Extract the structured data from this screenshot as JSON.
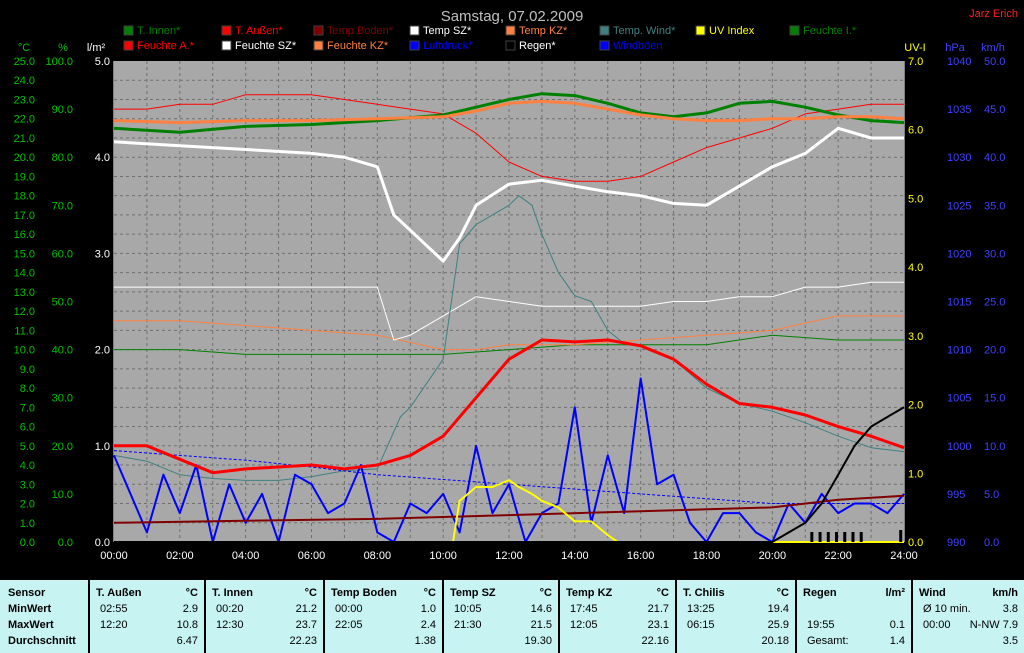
{
  "title": "Samstag, 07.02.2009",
  "author": "Jarz Erich",
  "chart_data": {
    "type": "line",
    "x_ticks": [
      "00:00",
      "02:00",
      "04:00",
      "06:00",
      "08:00",
      "10:00",
      "12:00",
      "14:00",
      "16:00",
      "18:00",
      "20:00",
      "22:00",
      "24:00"
    ],
    "axes": {
      "celsius": {
        "label": "°C",
        "min": 0,
        "max": 25,
        "step": 1,
        "color": "#00c000"
      },
      "percent": {
        "label": "%",
        "min": 0,
        "max": 100,
        "step": 10,
        "color": "#00c000"
      },
      "rain": {
        "label": "l/m²",
        "min": 0,
        "max": 5,
        "step": 1,
        "color": "#ffffff"
      },
      "uv": {
        "label": "UV-I",
        "min": 0,
        "max": 7,
        "step": 1,
        "color": "#ffff00"
      },
      "pressure": {
        "label": "hPa",
        "min": 990,
        "max": 1040,
        "step": 5,
        "color": "#4040ff"
      },
      "wind": {
        "label": "km/h",
        "min": 0,
        "max": 50,
        "step": 5,
        "color": "#4040ff"
      }
    },
    "legend": [
      {
        "name": "T. Innen*",
        "color": "#008000"
      },
      {
        "name": "T. Außen*",
        "color": "#ff0000"
      },
      {
        "name": "Temp Boden*",
        "color": "#800000"
      },
      {
        "name": "Temp SZ*",
        "color": "#ffffff"
      },
      {
        "name": "Temp KZ*",
        "color": "#ff8040"
      },
      {
        "name": "Temp. Wind*",
        "color": "#408080"
      },
      {
        "name": "UV Index",
        "color": "#ffff00"
      },
      {
        "name": "Feuchte I.*",
        "color": "#008000"
      },
      {
        "name": "Feuchte A.*",
        "color": "#ff0000"
      },
      {
        "name": "Feuchte SZ*",
        "color": "#ffffff"
      },
      {
        "name": "Feuchte KZ*",
        "color": "#ff8040"
      },
      {
        "name": "Luftdruck*",
        "color": "#0000ff"
      },
      {
        "name": "Regen*",
        "color": "#000000"
      },
      {
        "name": "Windböen",
        "color": "#0000ff"
      }
    ],
    "series": [
      {
        "name": "T. Innen*",
        "axis": "celsius",
        "color": "#008000",
        "width": 3,
        "x": [
          0,
          2,
          4,
          6,
          8,
          10,
          11,
          12,
          13,
          14,
          15,
          16,
          17,
          18,
          19,
          20,
          21,
          22,
          23,
          24
        ],
        "y": [
          21.5,
          21.3,
          21.6,
          21.7,
          21.9,
          22.2,
          22.6,
          23.0,
          23.3,
          23.2,
          22.8,
          22.3,
          22.1,
          22.3,
          22.8,
          22.9,
          22.6,
          22.2,
          21.9,
          21.8
        ]
      },
      {
        "name": "T. Außen*",
        "axis": "celsius",
        "color": "#ff0000",
        "width": 3,
        "x": [
          0,
          1,
          2,
          3,
          4,
          5,
          6,
          7,
          8,
          9,
          10,
          11,
          12,
          13,
          14,
          15,
          16,
          17,
          18,
          19,
          20,
          21,
          22,
          23,
          24
        ],
        "y": [
          5.0,
          5.0,
          4.3,
          3.6,
          3.8,
          3.9,
          4.0,
          3.8,
          4.0,
          4.5,
          5.5,
          7.5,
          9.5,
          10.5,
          10.4,
          10.5,
          10.2,
          9.5,
          8.2,
          7.2,
          7.0,
          6.6,
          6.0,
          5.5,
          4.9
        ]
      },
      {
        "name": "Temp Boden*",
        "axis": "celsius",
        "color": "#800000",
        "width": 2,
        "x": [
          0,
          4,
          8,
          12,
          16,
          20,
          22,
          24
        ],
        "y": [
          1.0,
          1.1,
          1.2,
          1.4,
          1.6,
          1.8,
          2.2,
          2.4
        ]
      },
      {
        "name": "Temp SZ*",
        "axis": "celsius",
        "color": "#ffffff",
        "width": 3,
        "x": [
          0,
          2,
          4,
          6,
          7,
          8,
          8.5,
          9,
          10,
          10.5,
          11,
          12,
          13,
          14,
          15,
          16,
          17,
          18,
          19,
          20,
          21,
          22,
          23,
          24
        ],
        "y": [
          20.8,
          20.6,
          20.4,
          20.2,
          20.0,
          19.5,
          17.0,
          16.2,
          14.6,
          15.8,
          17.5,
          18.6,
          18.8,
          18.5,
          18.2,
          18.0,
          17.6,
          17.5,
          18.5,
          19.5,
          20.2,
          21.5,
          21.0,
          21.0
        ]
      },
      {
        "name": "Temp KZ*",
        "axis": "celsius",
        "color": "#ff8040",
        "width": 3,
        "x": [
          0,
          2,
          4,
          6,
          8,
          10,
          11,
          12,
          13,
          14,
          15,
          16,
          17,
          18,
          19,
          20,
          21,
          22,
          23,
          24
        ],
        "y": [
          21.9,
          21.8,
          21.9,
          21.9,
          22.0,
          22.1,
          22.4,
          22.8,
          22.9,
          22.8,
          22.5,
          22.2,
          22.0,
          21.9,
          21.9,
          22.0,
          22.0,
          22.1,
          22.1,
          22.0
        ]
      },
      {
        "name": "Temp. Wind*",
        "axis": "celsius",
        "color": "#408080",
        "width": 1,
        "x": [
          0,
          1,
          2,
          3,
          4,
          5,
          6,
          7,
          8,
          8.7,
          9,
          10,
          10.5,
          11,
          11.5,
          12,
          12.3,
          12.7,
          13,
          13.5,
          14,
          14.5,
          15,
          15.5,
          16,
          17,
          18,
          19,
          20,
          21,
          22,
          23,
          24
        ],
        "y": [
          4.5,
          4.2,
          3.5,
          3.3,
          3.2,
          3.2,
          3.4,
          3.7,
          3.8,
          6.5,
          7.0,
          9.5,
          15.5,
          16.5,
          17.0,
          17.5,
          18.0,
          17.5,
          16.0,
          14.0,
          12.8,
          12.5,
          11.0,
          10.3,
          10.2,
          9.5,
          8.0,
          7.2,
          6.8,
          6.2,
          5.5,
          4.9,
          4.7
        ]
      },
      {
        "name": "Feuchte I.*",
        "axis": "percent",
        "color": "#008000",
        "width": 1,
        "x": [
          0,
          2,
          4,
          6,
          8,
          10,
          12,
          14,
          16,
          18,
          20,
          22,
          24
        ],
        "y": [
          40,
          40,
          39,
          39,
          39,
          39,
          40,
          41,
          41,
          41,
          43,
          42,
          42
        ]
      },
      {
        "name": "Feuchte A.*",
        "axis": "percent",
        "color": "#ff0000",
        "width": 1,
        "x": [
          0,
          1,
          2,
          3,
          4,
          5,
          6,
          7,
          8,
          9,
          10,
          11,
          12,
          13,
          14,
          15,
          16,
          17,
          18,
          19,
          20,
          21,
          22,
          23,
          24
        ],
        "y": [
          90,
          90,
          91,
          91,
          93,
          93,
          93,
          92,
          91,
          90,
          89,
          85,
          79,
          76,
          75,
          75,
          76,
          79,
          82,
          84,
          86,
          89,
          90,
          91,
          91
        ]
      },
      {
        "name": "Feuchte SZ*",
        "axis": "percent",
        "color": "#ffffff",
        "width": 1,
        "x": [
          0,
          2,
          4,
          6,
          8,
          8.5,
          9,
          10,
          11,
          12,
          13,
          14,
          15,
          16,
          17,
          18,
          19,
          20,
          21,
          22,
          23,
          24
        ],
        "y": [
          53,
          53,
          53,
          53,
          53,
          42,
          43,
          47,
          51,
          50,
          49,
          49,
          49,
          49,
          50,
          50,
          51,
          51,
          53,
          53,
          54,
          54
        ]
      },
      {
        "name": "Feuchte KZ*",
        "axis": "percent",
        "color": "#ff8040",
        "width": 1,
        "x": [
          0,
          2,
          4,
          6,
          8,
          10,
          11,
          12,
          14,
          16,
          18,
          20,
          22,
          24
        ],
        "y": [
          46,
          46,
          45,
          44,
          43,
          40,
          40,
          41,
          41,
          42,
          43,
          44,
          47,
          47
        ]
      },
      {
        "name": "Luftdruck*",
        "axis": "pressure",
        "color": "#0000ff",
        "width": 1,
        "dashed": true,
        "x": [
          0,
          2,
          4,
          6,
          8,
          10,
          12,
          14,
          16,
          18,
          20,
          22,
          24
        ],
        "y": [
          999.5,
          999,
          998.5,
          997.8,
          997,
          996.5,
          996,
          995.5,
          995,
          994.5,
          994,
          994,
          994
        ]
      },
      {
        "name": "Windböen",
        "axis": "wind",
        "color": "#0000ff",
        "width": 2,
        "x": [
          0,
          0.5,
          1,
          1.5,
          2,
          2.5,
          3,
          3.5,
          4,
          4.5,
          5,
          5.5,
          6,
          6.5,
          7,
          7.5,
          8,
          8.5,
          9,
          9.5,
          10,
          10.5,
          11,
          11.5,
          12,
          12.5,
          13,
          13.5,
          14,
          14.5,
          15,
          15.5,
          16,
          16.5,
          17,
          17.5,
          18,
          18.5,
          19,
          19.5,
          20,
          20.5,
          21,
          21.5,
          22,
          22.5,
          23,
          23.5,
          24
        ],
        "y": [
          9,
          5,
          1,
          7,
          3,
          8,
          0,
          6,
          2,
          5,
          0,
          7,
          6,
          3,
          4,
          8,
          1,
          0,
          4,
          3,
          5,
          1,
          10,
          3,
          6,
          0,
          3,
          4,
          14,
          2,
          9,
          3,
          17,
          6,
          7,
          2,
          0,
          3,
          3,
          1,
          0,
          4,
          2,
          5,
          3,
          4,
          4,
          3,
          5
        ]
      },
      {
        "name": "UV Index",
        "axis": "uv",
        "color": "#ffff00",
        "width": 2,
        "x": [
          0,
          10.3,
          10.5,
          11,
          11.5,
          12,
          12.3,
          12.7,
          13,
          13.5,
          14,
          14.5,
          15,
          15.3,
          24
        ],
        "y": [
          0,
          0,
          0.6,
          0.8,
          0.8,
          0.9,
          0.8,
          0.7,
          0.6,
          0.5,
          0.3,
          0.3,
          0.1,
          0,
          0
        ]
      },
      {
        "name": "Regen*",
        "axis": "rain",
        "color": "#000000",
        "width": 2,
        "x": [
          0,
          20,
          20.5,
          21,
          21.5,
          22,
          22.5,
          23,
          23.5,
          24
        ],
        "y": [
          0,
          0,
          0.1,
          0.2,
          0.4,
          0.7,
          1.0,
          1.2,
          1.3,
          1.4
        ]
      }
    ]
  },
  "table": [
    {
      "sensor_label": "Sensor",
      "row_labels": [
        "MinWert",
        "MaxWert",
        "Durchschnitt"
      ]
    },
    {
      "name": "T. Außen",
      "unit": "°C",
      "rows": [
        [
          "02:55",
          "2.9"
        ],
        [
          "12:20",
          "10.8"
        ],
        [
          "",
          "6.47"
        ]
      ]
    },
    {
      "name": "T. Innen",
      "unit": "°C",
      "rows": [
        [
          "00:20",
          "21.2"
        ],
        [
          "12:30",
          "23.7"
        ],
        [
          "",
          "22.23"
        ]
      ]
    },
    {
      "name": "Temp Boden",
      "unit": "°C",
      "rows": [
        [
          "00:00",
          "1.0"
        ],
        [
          "22:05",
          "2.4"
        ],
        [
          "",
          "1.38"
        ]
      ]
    },
    {
      "name": "Temp SZ",
      "unit": "°C",
      "rows": [
        [
          "10:05",
          "14.6"
        ],
        [
          "21:30",
          "21.5"
        ],
        [
          "",
          "19.30"
        ]
      ]
    },
    {
      "name": "Temp KZ",
      "unit": "°C",
      "rows": [
        [
          "17:45",
          "21.7"
        ],
        [
          "12:05",
          "23.1"
        ],
        [
          "",
          "22.16"
        ]
      ]
    },
    {
      "name": "T. Chilis",
      "unit": "°C",
      "rows": [
        [
          "13:25",
          "19.4"
        ],
        [
          "06:15",
          "25.9"
        ],
        [
          "",
          "20.18"
        ]
      ]
    },
    {
      "name": "Regen",
      "unit": "l/m²",
      "rows": [
        [
          "",
          ""
        ],
        [
          "19:55",
          "0.1"
        ],
        [
          "Gesamt:",
          "1.4"
        ]
      ]
    },
    {
      "name": "Wind",
      "unit": "km/h",
      "rows": [
        [
          "Ø 10 min.",
          "3.8"
        ],
        [
          "00:00",
          "N-NW 7.9"
        ],
        [
          "",
          "3.5"
        ]
      ]
    }
  ]
}
